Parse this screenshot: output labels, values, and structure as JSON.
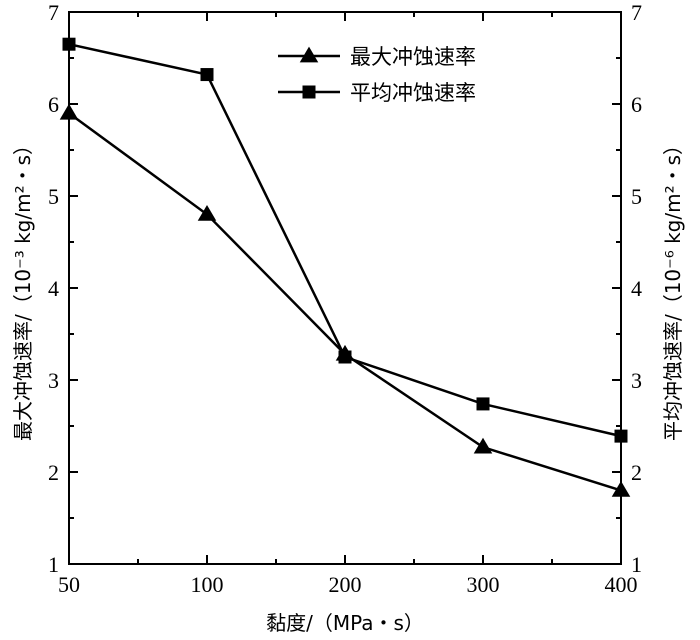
{
  "chart_data": {
    "type": "line",
    "x_categories": [
      "50",
      "100",
      "200",
      "300",
      "400"
    ],
    "xlabel": "黏度/（MPa・s）",
    "ylabel_left": "最大冲蚀速率/（10⁻³ kg/m²・s）",
    "ylabel_right": "平均冲蚀速率/（10⁻⁶ kg/m²・s）",
    "ylim": [
      1,
      7
    ],
    "yticks": [
      "1",
      "2",
      "3",
      "4",
      "5",
      "6",
      "7"
    ],
    "legend_position": "top-center",
    "grid": false,
    "series": [
      {
        "name": "最大冲蚀速率",
        "marker": "triangle",
        "axis": "left",
        "values": [
          5.9,
          4.8,
          3.28,
          2.27,
          1.8
        ]
      },
      {
        "name": "平均冲蚀速率",
        "marker": "square",
        "axis": "right",
        "values": [
          6.65,
          6.32,
          3.25,
          2.74,
          2.39
        ]
      }
    ]
  }
}
